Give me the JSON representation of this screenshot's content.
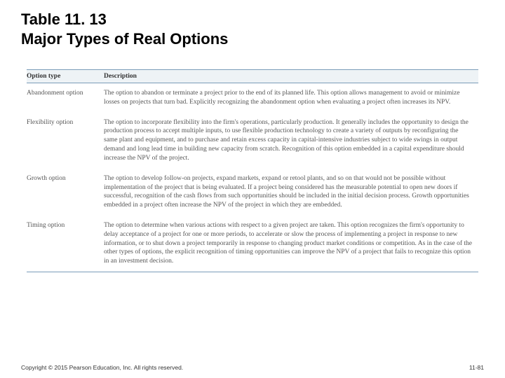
{
  "title_line1": "Table 11. 13",
  "title_line2": "Major Types of Real Options",
  "table": {
    "header_col1": "Option type",
    "header_col2": "Description",
    "rows": [
      {
        "name": "Abandonment option",
        "desc": "The option to abandon or terminate a project prior to the end of its planned life. This option allows management to avoid or minimize losses on projects that turn bad. Explicitly recognizing the abandonment option when evaluating a project often increases its NPV."
      },
      {
        "name": "Flexibility option",
        "desc": "The option to incorporate flexibility into the firm's operations, particularly production. It generally includes the opportunity to design the production process to accept multiple inputs, to use flexible production technology to create a variety of outputs by reconfiguring the same plant and equipment, and to purchase and retain excess capacity in capital-intensive industries subject to wide swings in output demand and long lead time in building new capacity from scratch. Recognition of this option embedded in a capital expenditure should increase the NPV of the project."
      },
      {
        "name": "Growth option",
        "desc": "The option to develop follow-on projects, expand markets, expand or retool plants, and so on that would not be possible without implementation of the project that is being evaluated. If a project being considered has the measurable potential to open new doors if successful, recognition of the cash flows from such opportunities should be included in the initial decision process. Growth opportunities embedded in a project often increase the NPV of the project in which they are embedded."
      },
      {
        "name": "Timing option",
        "desc": "The option to determine when various actions with respect to a given project are taken. This option recognizes the firm's opportunity to delay acceptance of a project for one or more periods, to accelerate or slow the process of implementing a project in response to new information, or to shut down a project temporarily in response to changing product market conditions or competition. As in the case of the other types of options, the explicit recognition of timing opportunities can improve the NPV of a project that fails to recognize this option in an investment decision."
      }
    ]
  },
  "footer": {
    "copyright": "Copyright © 2015 Pearson Education, Inc. All rights reserved.",
    "page": "11-81"
  }
}
